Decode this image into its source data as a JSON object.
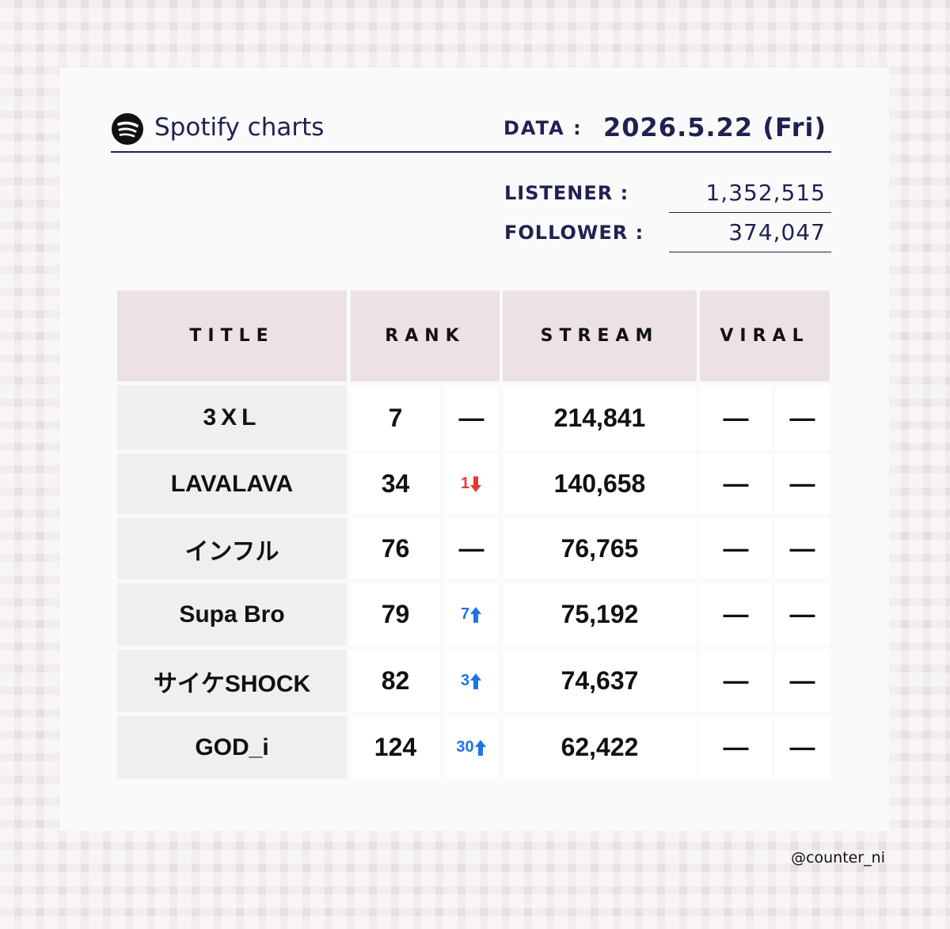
{
  "header": {
    "service": "Spotify charts",
    "date_label": "DATA :",
    "date": "2026.5.22 (Fri)"
  },
  "stats": [
    {
      "label": "LISTENER :",
      "value": "1,352,515"
    },
    {
      "label": "FOLLOWER :",
      "value": "374,047"
    }
  ],
  "table": {
    "columns": [
      "TITLE",
      "RANK",
      "STREAM",
      "VIRAL"
    ],
    "rows": [
      {
        "title": "3XL",
        "rank": "7",
        "change": "—",
        "stream": "214,841",
        "viral": [
          "—",
          "—"
        ]
      },
      {
        "title": "LAVALAVA",
        "rank": "34",
        "change": "1",
        "trend": "down",
        "stream": "140,658",
        "viral": [
          "—",
          "—"
        ]
      },
      {
        "title": "インフル",
        "rank": "76",
        "change": "—",
        "stream": "76,765",
        "viral": [
          "—",
          "—"
        ]
      },
      {
        "title": "Supa Bro",
        "rank": "79",
        "change": "7",
        "trend": "up",
        "stream": "75,192",
        "viral": [
          "—",
          "—"
        ]
      },
      {
        "title": "サイケSHOCK",
        "rank": "82",
        "change": "3",
        "trend": "up",
        "stream": "74,637",
        "viral": [
          "—",
          "—"
        ]
      },
      {
        "title": "GOD_i",
        "rank": "124",
        "change": "30",
        "trend": "up",
        "stream": "62,422",
        "viral": [
          "—",
          "—"
        ]
      }
    ]
  },
  "credit": "@counter_ni"
}
